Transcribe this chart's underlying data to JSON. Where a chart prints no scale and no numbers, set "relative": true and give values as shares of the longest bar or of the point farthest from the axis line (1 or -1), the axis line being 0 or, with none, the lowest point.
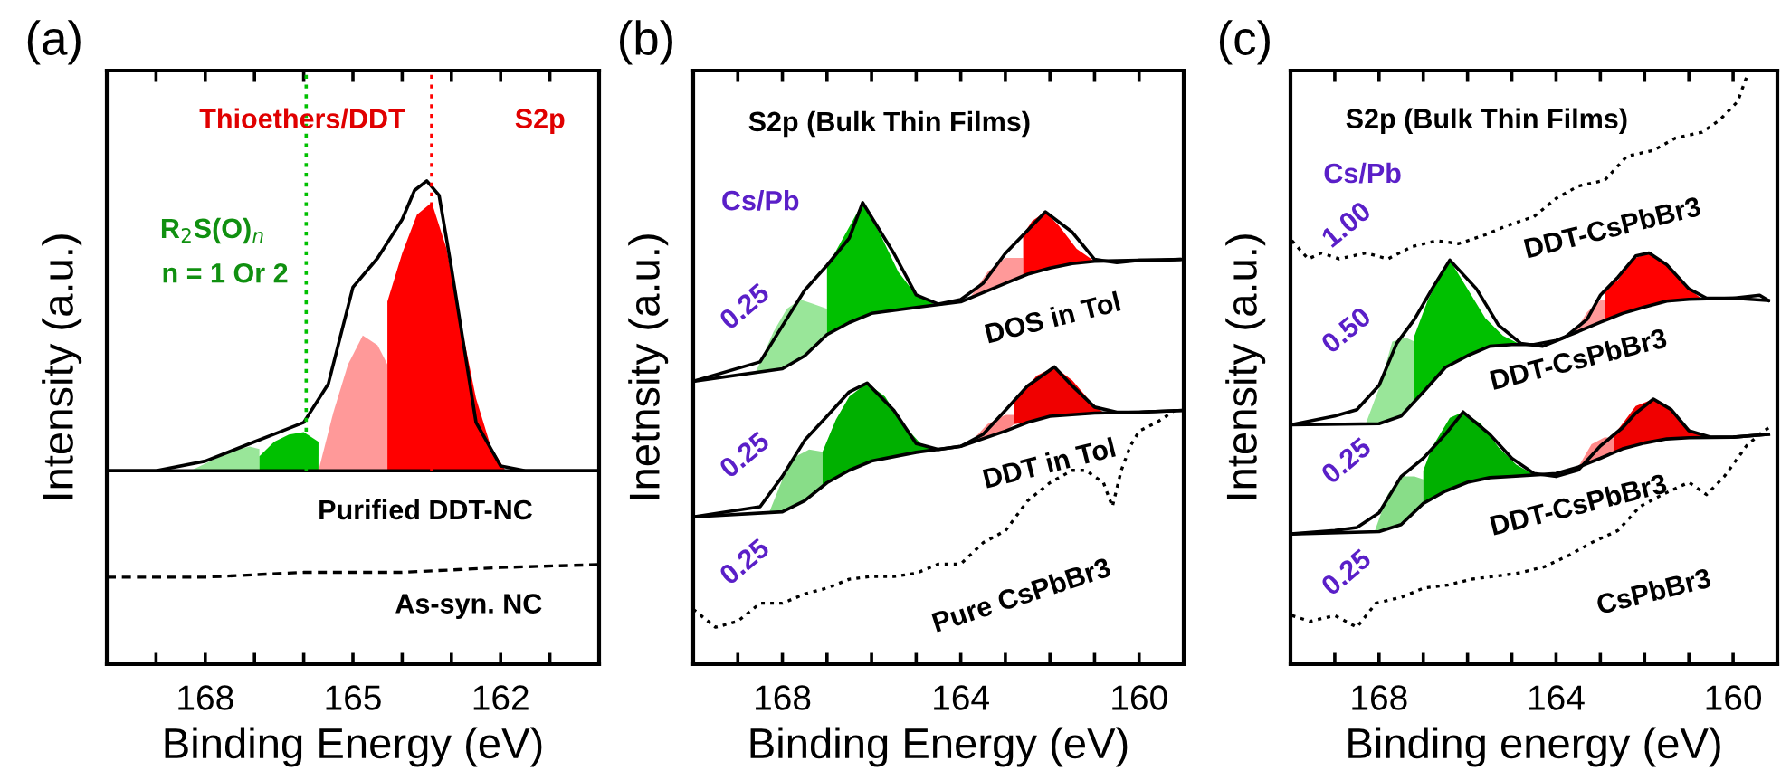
{
  "chart_data": [
    {
      "type": "line",
      "title": "(a)",
      "xlabel": "Binding Energy (eV)",
      "ylabel": "Intensity (a.u.)",
      "relative": true,
      "tick_labels": "x",
      "xlim": [
        170,
        160
      ],
      "xticks": [
        {
          "value": 169,
          "label": null
        },
        168,
        {
          "value": 167,
          "label": null
        },
        {
          "value": 166,
          "label": null
        },
        165,
        {
          "value": 164,
          "label": null
        },
        {
          "value": 163,
          "label": null
        },
        162,
        {
          "value": 161,
          "label": null
        }
      ],
      "series": [
        {
          "color": "#000000",
          "line_style": "solid",
          "x": [
            170,
            160
          ],
          "values": [
            0.4,
            0.4
          ]
        },
        {
          "type": "area",
          "color": "#99e699",
          "x": [
            168.3,
            167.9,
            167.5,
            167.1,
            166.9,
            166.9
          ],
          "values": [
            0.4,
            0.42,
            0.44,
            0.45,
            0.445,
            0.4
          ]
        },
        {
          "type": "area",
          "color": "#00c000",
          "x": [
            166.9,
            166.9,
            166.6,
            166.3,
            166.0,
            165.7,
            165.7
          ],
          "values": [
            0.4,
            0.43,
            0.46,
            0.475,
            0.48,
            0.46,
            0.4
          ]
        },
        {
          "type": "area",
          "color": "#ff9999",
          "x": [
            165.7,
            165.4,
            165.1,
            164.8,
            164.5,
            164.3,
            164.3
          ],
          "values": [
            0.4,
            0.52,
            0.62,
            0.68,
            0.66,
            0.62,
            0.4
          ]
        },
        {
          "type": "area",
          "color": "#ff0000",
          "x": [
            164.3,
            164.3,
            164.0,
            163.7,
            163.4,
            163.1,
            162.8,
            162.5,
            162.2,
            161.9
          ],
          "values": [
            0.4,
            0.75,
            0.85,
            0.93,
            0.955,
            0.86,
            0.7,
            0.55,
            0.45,
            0.4
          ]
        },
        {
          "color": "#000000",
          "line_style": "solid",
          "x": [
            170,
            169,
            168,
            167.5,
            167,
            166.5,
            166,
            165.5,
            165,
            164.5,
            164,
            163.75,
            163.5,
            163.25,
            163,
            162.5,
            162,
            161.5,
            161,
            160
          ],
          "values": [
            0.4,
            0.4,
            0.42,
            0.44,
            0.46,
            0.48,
            0.5,
            0.58,
            0.78,
            0.84,
            0.92,
            0.98,
            1.0,
            0.97,
            0.82,
            0.5,
            0.41,
            0.4,
            0.4,
            0.4
          ]
        },
        {
          "color": "#000000",
          "line_style": "dashed",
          "x": [
            170,
            168,
            166,
            164,
            162,
            160
          ],
          "values": [
            0.18,
            0.18,
            0.19,
            0.19,
            0.2,
            0.206
          ]
        }
      ],
      "ref_lines": [
        {
          "axis": "x",
          "value": 163.4,
          "color": "#ff0000",
          "line_style": "dotted"
        },
        {
          "axis": "x",
          "value": 165.95,
          "color": "#00c000",
          "line_style": "dotted"
        }
      ],
      "annotations": [
        "Thioethers/DDT",
        "S2p",
        "R$_{2}$S(O)$_{n}$",
        "n = 1 Or 2",
        "Purified DDT-NC",
        "As-syn. NC"
      ]
    },
    {
      "type": "line",
      "title": "(b)",
      "xlabel": "Binding Energy (eV)",
      "ylabel": "Inetnsity (a.u.)",
      "relative": true,
      "tick_labels": "x",
      "xlim": [
        170,
        159
      ],
      "xticks": [
        {
          "value": 169,
          "label": null
        },
        168,
        {
          "value": 167,
          "label": null
        },
        {
          "value": 166,
          "label": null
        },
        {
          "value": 165,
          "label": null
        },
        164,
        {
          "value": 163,
          "label": null
        },
        {
          "value": 162,
          "label": null
        },
        {
          "value": 161,
          "label": null
        },
        160
      ],
      "series": [
        {
          "color": "#000000",
          "line_style": "solid",
          "x": [
            170,
            168,
            167.5,
            167,
            166.5,
            166,
            165,
            164,
            163.5,
            163,
            162.5,
            162,
            161.5,
            161,
            160,
            159
          ],
          "values": [
            0.613,
            0.64,
            0.668,
            0.714,
            0.74,
            0.76,
            0.773,
            0.785,
            0.805,
            0.825,
            0.845,
            0.858,
            0.868,
            0.873,
            0.875,
            0.877
          ]
        },
        {
          "type": "area",
          "color": "#99e699",
          "x": [
            168.6,
            168.2,
            167.9,
            167.6,
            167.3,
            167.0,
            167.0,
            167.5,
            168.0
          ],
          "values": [
            0.632,
            0.72,
            0.77,
            0.79,
            0.78,
            0.77,
            0.714,
            0.668,
            0.64
          ]
        },
        {
          "type": "area",
          "color": "#00c000",
          "x": [
            167.0,
            167.0,
            166.6,
            166.2,
            165.8,
            165.4,
            165.0,
            164.6,
            165.0,
            166.0,
            166.5
          ],
          "values": [
            0.714,
            0.86,
            0.93,
            1.0,
            0.93,
            0.85,
            0.8,
            0.78,
            0.773,
            0.76,
            0.74
          ]
        },
        {
          "type": "area",
          "color": "#ff9999",
          "x": [
            163.8,
            163.4,
            163.0,
            162.6,
            162.6,
            163.0,
            163.5
          ],
          "values": [
            0.793,
            0.85,
            0.88,
            0.88,
            0.841,
            0.825,
            0.805
          ]
        },
        {
          "type": "area",
          "color": "#ff0000",
          "x": [
            162.6,
            162.6,
            162.4,
            162.1,
            161.8,
            161.4,
            161.0,
            161.5,
            162.0,
            162.5
          ],
          "values": [
            0.841,
            0.93,
            0.96,
            0.98,
            0.95,
            0.9,
            0.873,
            0.868,
            0.858,
            0.845
          ]
        },
        {
          "color": "#000000",
          "line_style": "solid",
          "x": [
            170,
            168.5,
            168,
            167.5,
            167,
            166.5,
            166.2,
            165.5,
            165,
            164.5,
            164,
            163.5,
            163,
            162.5,
            162.1,
            161.5,
            161,
            160.5,
            160,
            159.5,
            159.1
          ],
          "values": [
            0.613,
            0.655,
            0.733,
            0.81,
            0.864,
            0.923,
            1.0,
            0.89,
            0.8,
            0.78,
            0.79,
            0.825,
            0.89,
            0.94,
            0.98,
            0.936,
            0.877,
            0.87,
            0.875,
            0.875,
            0.877
          ]
        },
        {
          "color": "#000000",
          "line_style": "solid",
          "x": [
            170,
            168,
            167.5,
            167,
            166.5,
            166,
            165,
            164,
            163,
            162.5,
            162,
            161,
            160,
            159
          ],
          "values": [
            0.319,
            0.33,
            0.354,
            0.393,
            0.42,
            0.44,
            0.459,
            0.472,
            0.505,
            0.524,
            0.537,
            0.544,
            0.546,
            0.55
          ]
        },
        {
          "type": "area",
          "color": "#88dd88",
          "x": [
            168.3,
            168.0,
            167.7,
            167.4,
            167.1,
            167.1,
            167.5,
            168.0
          ],
          "values": [
            0.328,
            0.4,
            0.45,
            0.465,
            0.46,
            0.385,
            0.354,
            0.33
          ]
        },
        {
          "type": "area",
          "color": "#00b000",
          "x": [
            167.1,
            167.1,
            166.8,
            166.5,
            166.1,
            165.7,
            165.3,
            164.9,
            164.5,
            165.0,
            166.0,
            166.5,
            167.0
          ],
          "values": [
            0.385,
            0.46,
            0.53,
            0.58,
            0.609,
            0.58,
            0.52,
            0.478,
            0.466,
            0.459,
            0.44,
            0.42,
            0.393
          ]
        },
        {
          "type": "area",
          "color": "#ff8888",
          "x": [
            163.8,
            163.4,
            163.0,
            162.8,
            162.8,
            163.0
          ],
          "values": [
            0.479,
            0.52,
            0.54,
            0.54,
            0.52,
            0.505
          ]
        },
        {
          "type": "area",
          "color": "#f00000",
          "x": [
            162.8,
            162.8,
            162.6,
            162.3,
            161.9,
            161.5,
            161.1,
            160.8,
            161.0,
            162.0,
            162.5
          ],
          "values": [
            0.52,
            0.57,
            0.59,
            0.625,
            0.644,
            0.615,
            0.57,
            0.545,
            0.544,
            0.537,
            0.524
          ]
        },
        {
          "color": "#000000",
          "line_style": "solid",
          "x": [
            170,
            168.5,
            168,
            167.5,
            167,
            166.5,
            166.1,
            165.5,
            165,
            164.5,
            164,
            163.5,
            163,
            162.5,
            161.9,
            161.5,
            161,
            160.5,
            160,
            159
          ],
          "values": [
            0.319,
            0.341,
            0.407,
            0.485,
            0.537,
            0.59,
            0.609,
            0.55,
            0.478,
            0.465,
            0.472,
            0.498,
            0.55,
            0.603,
            0.644,
            0.603,
            0.557,
            0.546,
            0.546,
            0.55
          ]
        },
        {
          "color": "#000000",
          "line_style": "dotted",
          "x": [
            170,
            169.5,
            169,
            168.5,
            168,
            167.5,
            167,
            166.5,
            166,
            165.5,
            165,
            164.5,
            164,
            163.5,
            163,
            162.5,
            162,
            161.5,
            161.2,
            160.8,
            160.6,
            160.4,
            160.2,
            160,
            159.6,
            159.4,
            159.2
          ],
          "values": [
            0.119,
            0.08,
            0.093,
            0.132,
            0.132,
            0.152,
            0.165,
            0.184,
            0.19,
            0.19,
            0.197,
            0.217,
            0.217,
            0.263,
            0.289,
            0.354,
            0.393,
            0.42,
            0.42,
            0.393,
            0.341,
            0.42,
            0.472,
            0.505,
            0.524,
            0.537,
            0.55
          ]
        }
      ],
      "annotations": [
        "S2p (Bulk Thin Films)",
        "Cs/Pb",
        "0.25",
        "DOS in Tol",
        "0.25",
        "DDT in Tol",
        "0.25",
        "Pure CsPbBr3"
      ]
    },
    {
      "type": "line",
      "title": "(c)",
      "xlabel": "Binding energy (eV)",
      "ylabel": "Intensity (a.u.)",
      "relative": true,
      "tick_labels": "x",
      "xlim": [
        170,
        159
      ],
      "xticks": [
        {
          "value": 169,
          "label": null
        },
        168,
        {
          "value": 167,
          "label": null
        },
        {
          "value": 166,
          "label": null
        },
        {
          "value": 165,
          "label": null
        },
        164,
        {
          "value": 163,
          "label": null
        },
        {
          "value": 162,
          "label": null
        },
        {
          "value": 161,
          "label": null
        },
        160
      ],
      "series": [
        {
          "color": "#000000",
          "line_style": "dotted",
          "x": [
            169.97,
            169.6,
            169.3,
            168.9,
            168.3,
            167.8,
            167.25,
            166.7,
            166.2,
            165.6,
            165.1,
            164.5,
            164.0,
            163.5,
            162.9,
            162.4,
            161.8,
            161.3,
            160.7,
            160.3,
            159.9,
            159.7
          ],
          "values": [
            0.722,
            0.691,
            0.701,
            0.691,
            0.701,
            0.691,
            0.712,
            0.722,
            0.717,
            0.732,
            0.748,
            0.763,
            0.794,
            0.815,
            0.825,
            0.866,
            0.876,
            0.897,
            0.907,
            0.928,
            0.959,
            1.0
          ]
        },
        {
          "color": "#000000",
          "line_style": "solid",
          "x": [
            170,
            168,
            167.5,
            167,
            166.5,
            166,
            165.5,
            165,
            164.5,
            164,
            163.5,
            163,
            162.5,
            162,
            161.5,
            161,
            160,
            159.2
          ],
          "values": [
            0.408,
            0.41,
            0.423,
            0.464,
            0.506,
            0.526,
            0.542,
            0.545,
            0.545,
            0.552,
            0.567,
            0.583,
            0.598,
            0.609,
            0.619,
            0.622,
            0.624,
            0.62
          ]
        },
        {
          "type": "area",
          "color": "#99e699",
          "x": [
            168.3,
            168.0,
            167.7,
            167.4,
            167.2,
            167.2,
            167.5,
            168.0
          ],
          "values": [
            0.41,
            0.47,
            0.55,
            0.557,
            0.55,
            0.448,
            0.423,
            0.41
          ]
        },
        {
          "type": "area",
          "color": "#00c000",
          "x": [
            167.2,
            167.2,
            166.9,
            166.6,
            166.4,
            166.0,
            165.6,
            165.2,
            164.8,
            165.0,
            165.5,
            166.0,
            166.5,
            167.0
          ],
          "values": [
            0.448,
            0.56,
            0.62,
            0.665,
            0.689,
            0.64,
            0.59,
            0.56,
            0.545,
            0.545,
            0.542,
            0.526,
            0.506,
            0.464
          ]
        },
        {
          "type": "area",
          "color": "#ff9999",
          "x": [
            163.6,
            163.3,
            163.0,
            162.9,
            162.9,
            163.0,
            163.5
          ],
          "values": [
            0.564,
            0.6,
            0.62,
            0.62,
            0.586,
            0.583,
            0.567
          ]
        },
        {
          "type": "area",
          "color": "#ff0000",
          "x": [
            162.9,
            162.9,
            162.6,
            162.3,
            161.9,
            161.5,
            161.1,
            160.7,
            161.0,
            161.5,
            162.0,
            162.5
          ],
          "values": [
            0.586,
            0.64,
            0.655,
            0.69,
            0.701,
            0.681,
            0.645,
            0.623,
            0.622,
            0.619,
            0.609,
            0.598
          ]
        },
        {
          "color": "#000000",
          "line_style": "solid",
          "x": [
            170,
            169,
            168.5,
            168,
            167.6,
            167.2,
            166.8,
            166.4,
            165.8,
            165.3,
            164.8,
            164.3,
            163.8,
            163.3,
            163.0,
            162.6,
            162.2,
            161.9,
            161.5,
            161.0,
            160.6,
            160,
            159.4,
            159.2
          ],
          "values": [
            0.408,
            0.423,
            0.434,
            0.475,
            0.547,
            0.588,
            0.64,
            0.689,
            0.64,
            0.578,
            0.547,
            0.542,
            0.557,
            0.588,
            0.629,
            0.66,
            0.696,
            0.701,
            0.681,
            0.64,
            0.624,
            0.624,
            0.629,
            0.62
          ]
        },
        {
          "color": "#000000",
          "line_style": "solid",
          "x": [
            170,
            168,
            167.5,
            167,
            166.5,
            166,
            165.5,
            165,
            164,
            163.5,
            163,
            162.5,
            162,
            161.5,
            161,
            160,
            159.2
          ],
          "values": [
            0.222,
            0.226,
            0.238,
            0.274,
            0.295,
            0.31,
            0.318,
            0.32,
            0.325,
            0.336,
            0.351,
            0.367,
            0.377,
            0.384,
            0.386,
            0.387,
            0.392
          ]
        },
        {
          "type": "area",
          "color": "#88dd88",
          "x": [
            168.1,
            167.8,
            167.5,
            167.2,
            167.0,
            167.0,
            167.5,
            168.0
          ],
          "values": [
            0.226,
            0.29,
            0.32,
            0.32,
            0.315,
            0.274,
            0.238,
            0.226
          ]
        },
        {
          "type": "area",
          "color": "#00b000",
          "x": [
            167.0,
            167.0,
            166.8,
            166.4,
            166.1,
            165.7,
            165.3,
            164.9,
            164.5,
            165.0,
            165.5,
            166.0,
            166.5
          ],
          "values": [
            0.274,
            0.33,
            0.37,
            0.42,
            0.43,
            0.41,
            0.37,
            0.34,
            0.323,
            0.32,
            0.318,
            0.31,
            0.295
          ]
        },
        {
          "type": "area",
          "color": "#ff8888",
          "x": [
            163.5,
            163.2,
            162.9,
            162.7,
            162.7,
            163.0
          ],
          "values": [
            0.336,
            0.375,
            0.387,
            0.385,
            0.361,
            0.351
          ]
        },
        {
          "type": "area",
          "color": "#f00000",
          "x": [
            162.7,
            162.7,
            162.5,
            162.2,
            161.8,
            161.4,
            161.0,
            160.6,
            161.0,
            161.5,
            162.0,
            162.5
          ],
          "values": [
            0.361,
            0.39,
            0.41,
            0.44,
            0.452,
            0.434,
            0.4,
            0.387,
            0.386,
            0.384,
            0.377,
            0.367
          ]
        },
        {
          "color": "#000000",
          "line_style": "solid",
          "x": [
            170,
            169,
            168.5,
            168,
            167.5,
            167,
            166.5,
            166.1,
            165.5,
            165,
            164.5,
            164,
            163.5,
            163,
            162.5,
            162.2,
            161.8,
            161.4,
            161,
            160.5,
            160,
            159.2
          ],
          "values": [
            0.222,
            0.228,
            0.233,
            0.258,
            0.32,
            0.351,
            0.392,
            0.43,
            0.392,
            0.351,
            0.325,
            0.32,
            0.331,
            0.372,
            0.403,
            0.428,
            0.452,
            0.434,
            0.398,
            0.387,
            0.387,
            0.392
          ]
        },
        {
          "color": "#000000",
          "line_style": "dotted",
          "x": [
            169.97,
            169.56,
            169.0,
            168.5,
            168.07,
            167.5,
            166.98,
            166.44,
            165.9,
            165.36,
            164.8,
            164.27,
            163.7,
            163.2,
            162.6,
            162.1,
            161.6,
            161.0,
            160.6,
            160.2,
            159.9,
            159.7,
            159.4,
            159.2
          ],
          "values": [
            0.083,
            0.073,
            0.083,
            0.063,
            0.104,
            0.114,
            0.13,
            0.135,
            0.145,
            0.15,
            0.156,
            0.166,
            0.186,
            0.207,
            0.228,
            0.269,
            0.289,
            0.31,
            0.289,
            0.32,
            0.351,
            0.372,
            0.392,
            0.403
          ]
        }
      ],
      "annotations": [
        "S2p (Bulk Thin Films)",
        "Cs/Pb",
        "1.00",
        "DDT-CsPbBr3",
        "0.50",
        "DDT-CsPbBr3",
        "0.25",
        "DDT-CsPbBr3",
        "0.25",
        "CsPbBr3"
      ]
    }
  ]
}
